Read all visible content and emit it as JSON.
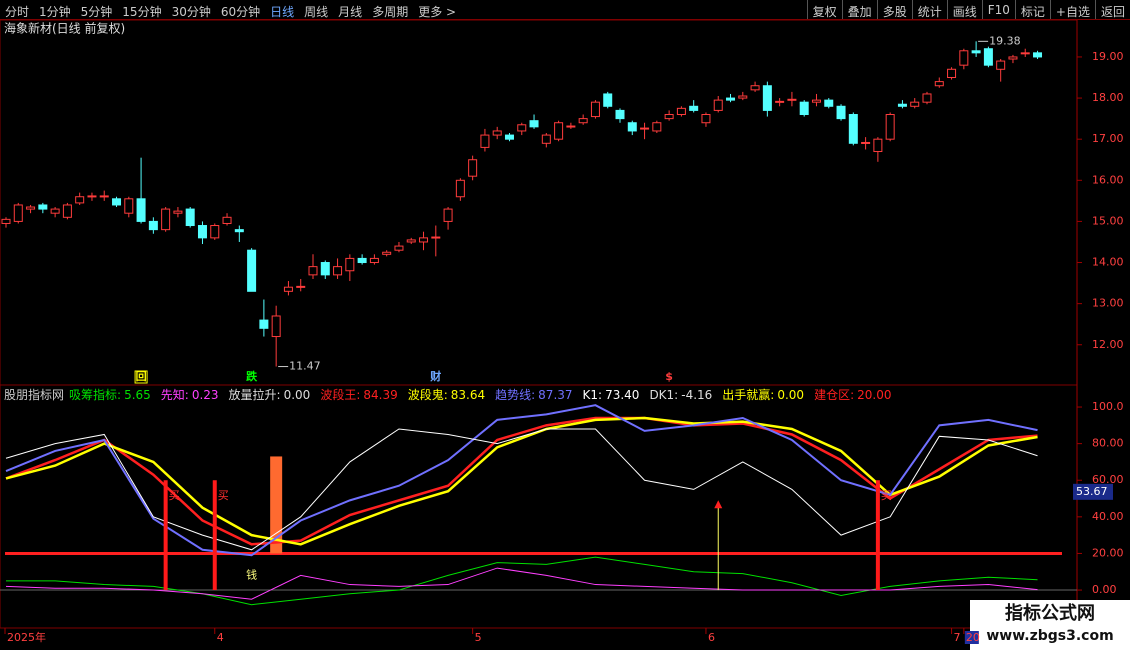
{
  "toolbar": {
    "left": [
      "分时",
      "1分钟",
      "5分钟",
      "15分钟",
      "30分钟",
      "60分钟",
      "日线",
      "周线",
      "月线",
      "多周期",
      "更多 >"
    ],
    "active": "日线",
    "right": [
      "复权",
      "叠加",
      "多股",
      "统计",
      "画线",
      "F10",
      "标记",
      "+自选",
      "返回"
    ]
  },
  "price_chart": {
    "title": "海象新材(日线 前复权)",
    "ylim": [
      11.07,
      19.85
    ],
    "yticks": [
      {
        "value": 12,
        "label": "12.00"
      },
      {
        "value": 13,
        "label": "13.00"
      },
      {
        "value": 14,
        "label": "14.00"
      },
      {
        "value": 15,
        "label": "15.00"
      },
      {
        "value": 16,
        "label": "16.00"
      },
      {
        "value": 17,
        "label": "17.00"
      },
      {
        "value": 18,
        "label": "18.00"
      },
      {
        "value": 19,
        "label": "19.00"
      }
    ],
    "up_color": "#ff3c3c",
    "down_color": "#54ffff",
    "open": [
      14.95,
      15.0,
      15.3,
      15.4,
      15.2,
      15.1,
      15.45,
      15.6,
      15.6,
      15.55,
      15.2,
      15.55,
      15.0,
      14.8,
      15.2,
      15.3,
      14.9,
      14.6,
      14.95,
      14.8,
      14.3,
      12.6,
      12.2,
      13.3,
      13.4,
      13.7,
      14.0,
      13.7,
      13.8,
      14.1,
      14.0,
      14.2,
      14.3,
      14.5,
      14.5,
      14.6,
      15.0,
      15.6,
      16.1,
      16.8,
      17.1,
      17.1,
      17.2,
      17.45,
      16.9,
      17.0,
      17.3,
      17.4,
      17.55,
      18.1,
      17.7,
      17.4,
      17.25,
      17.2,
      17.5,
      17.6,
      17.8,
      17.4,
      17.7,
      18.0,
      18.0,
      18.2,
      18.3,
      17.9,
      17.95,
      17.9,
      17.9,
      17.95,
      17.8,
      17.6,
      16.9,
      16.7,
      17.0,
      17.85,
      17.8,
      17.9,
      18.3,
      18.5,
      18.8,
      19.15,
      19.2,
      18.7,
      18.95,
      19.08,
      19.1
    ],
    "high": [
      15.1,
      15.45,
      15.4,
      15.45,
      15.35,
      15.45,
      15.7,
      15.7,
      15.75,
      15.6,
      15.6,
      16.55,
      15.1,
      15.35,
      15.35,
      15.35,
      15.0,
      14.95,
      15.2,
      14.9,
      14.35,
      13.1,
      12.95,
      13.55,
      13.6,
      14.2,
      14.05,
      14.1,
      14.2,
      14.2,
      14.2,
      14.3,
      14.5,
      14.6,
      14.75,
      14.9,
      15.35,
      16.05,
      16.6,
      17.25,
      17.3,
      17.15,
      17.4,
      17.6,
      17.15,
      17.45,
      17.4,
      17.6,
      17.95,
      18.15,
      17.75,
      17.45,
      17.4,
      17.45,
      17.7,
      17.8,
      17.95,
      17.65,
      18.05,
      18.1,
      18.15,
      18.4,
      18.4,
      18.0,
      18.15,
      17.95,
      18.1,
      18.0,
      17.85,
      17.65,
      17.05,
      17.05,
      17.65,
      17.95,
      18.0,
      18.15,
      18.5,
      18.75,
      19.2,
      19.38,
      19.25,
      18.95,
      19.05,
      19.2,
      19.15
    ],
    "low": [
      14.85,
      14.95,
      15.2,
      15.2,
      15.1,
      15.05,
      15.4,
      15.5,
      15.5,
      15.35,
      15.1,
      14.95,
      14.7,
      14.75,
      15.1,
      14.85,
      14.45,
      14.55,
      14.9,
      14.5,
      13.3,
      12.2,
      11.47,
      13.2,
      13.3,
      13.6,
      13.6,
      13.6,
      13.55,
      13.95,
      13.95,
      14.15,
      14.25,
      14.45,
      14.3,
      14.15,
      14.8,
      15.5,
      16.0,
      16.7,
      17.0,
      16.95,
      17.1,
      17.25,
      16.8,
      16.95,
      17.25,
      17.35,
      17.5,
      17.75,
      17.4,
      17.1,
      17.0,
      17.15,
      17.45,
      17.55,
      17.65,
      17.3,
      17.65,
      17.9,
      17.95,
      18.15,
      17.55,
      17.8,
      17.8,
      17.55,
      17.8,
      17.75,
      17.45,
      16.85,
      16.75,
      16.45,
      16.95,
      17.75,
      17.75,
      17.85,
      18.25,
      18.45,
      18.7,
      19.0,
      18.75,
      18.4,
      18.85,
      19.0,
      18.95
    ],
    "close": [
      15.05,
      15.4,
      15.35,
      15.3,
      15.3,
      15.4,
      15.6,
      15.62,
      15.62,
      15.4,
      15.55,
      15.0,
      14.8,
      15.3,
      15.25,
      14.9,
      14.6,
      14.9,
      15.1,
      14.75,
      13.3,
      12.4,
      12.7,
      13.4,
      13.42,
      13.9,
      13.7,
      13.9,
      14.1,
      14.0,
      14.1,
      14.25,
      14.4,
      14.55,
      14.6,
      14.62,
      15.3,
      16.0,
      16.5,
      17.1,
      17.2,
      17.0,
      17.35,
      17.3,
      17.1,
      17.4,
      17.32,
      17.5,
      17.9,
      17.8,
      17.5,
      17.2,
      17.27,
      17.4,
      17.6,
      17.75,
      17.7,
      17.6,
      17.95,
      17.95,
      18.05,
      18.3,
      17.7,
      17.92,
      17.97,
      17.6,
      17.95,
      17.8,
      17.5,
      16.9,
      16.92,
      17.0,
      17.6,
      17.8,
      17.9,
      18.1,
      18.4,
      18.7,
      19.15,
      19.1,
      18.8,
      18.9,
      19.0,
      19.1,
      19.0
    ],
    "annotations": [
      {
        "index": 22,
        "value": 11.47
      },
      {
        "index": 79,
        "value": 19.38
      }
    ],
    "markers": [
      {
        "index": 11,
        "label": "回",
        "color": "#ffff00"
      },
      {
        "index": 20,
        "label": "跌",
        "color": "#00ff00"
      },
      {
        "index": 35,
        "label": "财",
        "color": "#6fa8ff"
      },
      {
        "index": 54,
        "label": "$",
        "color": "#ff3c3c"
      }
    ]
  },
  "indicator": {
    "name": "股朋指标网",
    "ylim": [
      -19.1,
      110.4
    ],
    "yticks": [
      {
        "value": 0,
        "label": "0.00"
      },
      {
        "value": 20,
        "label": "20.00"
      },
      {
        "value": 40,
        "label": "40.00"
      },
      {
        "value": 60,
        "label": "60.00"
      },
      {
        "value": 80,
        "label": "80.00"
      },
      {
        "value": 100,
        "label": "100.0"
      }
    ],
    "x": [
      0,
      4,
      8,
      12,
      16,
      20,
      24,
      28,
      32,
      36,
      40,
      44,
      48,
      52,
      56,
      60,
      64,
      68,
      72,
      76,
      80,
      84
    ],
    "legend": [
      {
        "name": "吸筹指标:",
        "value": 5.65,
        "color": "#00e000",
        "values": [
          5,
          5,
          3,
          2,
          -2,
          -8,
          -5,
          -2,
          0,
          8,
          15,
          14,
          18,
          14,
          10,
          9,
          4,
          -3,
          2,
          5,
          7,
          5.65
        ]
      },
      {
        "name": "先知:",
        "value": 0.23,
        "color": "#ff40ff",
        "values": [
          2,
          1,
          1,
          0,
          -2,
          -5,
          8,
          3,
          2,
          3,
          12,
          8,
          3,
          2,
          1,
          0,
          0,
          0,
          0,
          2,
          3,
          0.23
        ]
      },
      {
        "name": "放量拉升:",
        "value": 0,
        "value_label": "0.00",
        "color": "#dddddd"
      },
      {
        "name": "波段王:",
        "value": 84.39,
        "color": "#ff2020",
        "values": [
          61,
          71,
          82,
          63,
          38,
          25,
          27,
          41,
          49,
          57,
          82,
          90,
          94,
          94,
          90,
          91,
          85,
          71,
          50,
          66,
          82,
          84.39
        ]
      },
      {
        "name": "波段鬼:",
        "value": 83.64,
        "color": "#ffff00",
        "values": [
          61,
          68,
          80,
          70,
          45,
          30,
          25,
          36,
          46,
          54,
          78,
          88,
          93,
          94,
          91,
          92,
          88,
          76,
          52,
          62,
          79,
          83.64
        ]
      },
      {
        "name": "趋势线:",
        "value": 87.37,
        "color": "#7070ff",
        "values": [
          65,
          76,
          82,
          39,
          22,
          19,
          38,
          49,
          57,
          71,
          93,
          96,
          101,
          87,
          90,
          94,
          82,
          60,
          52,
          90,
          93,
          87.37
        ]
      },
      {
        "name": "K1:",
        "value": 73.4,
        "value_label": "73.40",
        "color": "#ffffff",
        "values": [
          72,
          80,
          85,
          40,
          30,
          22,
          40,
          70,
          88,
          85,
          80,
          88,
          88,
          60,
          55,
          70,
          55,
          30,
          40,
          84,
          82,
          73.4
        ]
      },
      {
        "name": "DK1:",
        "value": -4.16,
        "color": "#dddddd"
      },
      {
        "name": "出手就赢:",
        "value": 0,
        "value_label": "0.00",
        "color": "#ffff00"
      },
      {
        "name": "建仓区:",
        "value": 20,
        "value_label": "20.00",
        "color": "#ff2020"
      }
    ],
    "buy_signals": {
      "label": "买",
      "indices": [
        13,
        17,
        71
      ],
      "value": 60
    },
    "surge_bar": {
      "index": 22,
      "values": [
        20,
        73
      ]
    },
    "arrow": {
      "index": 58,
      "value": 48
    },
    "money_label": {
      "label": "钱",
      "index": 20,
      "value": 8
    },
    "current_value": 53.67
  },
  "date_axis": [
    {
      "label": "2025年",
      "index": 0
    },
    {
      "label": "4",
      "index": 17
    },
    {
      "label": "5",
      "index": 38
    },
    {
      "label": "6",
      "index": 57
    },
    {
      "label": "7",
      "index": 77
    },
    {
      "label": "20",
      "index": 78
    }
  ],
  "watermark": {
    "title": "指标公式网",
    "url": "www.zbgs3.com"
  }
}
